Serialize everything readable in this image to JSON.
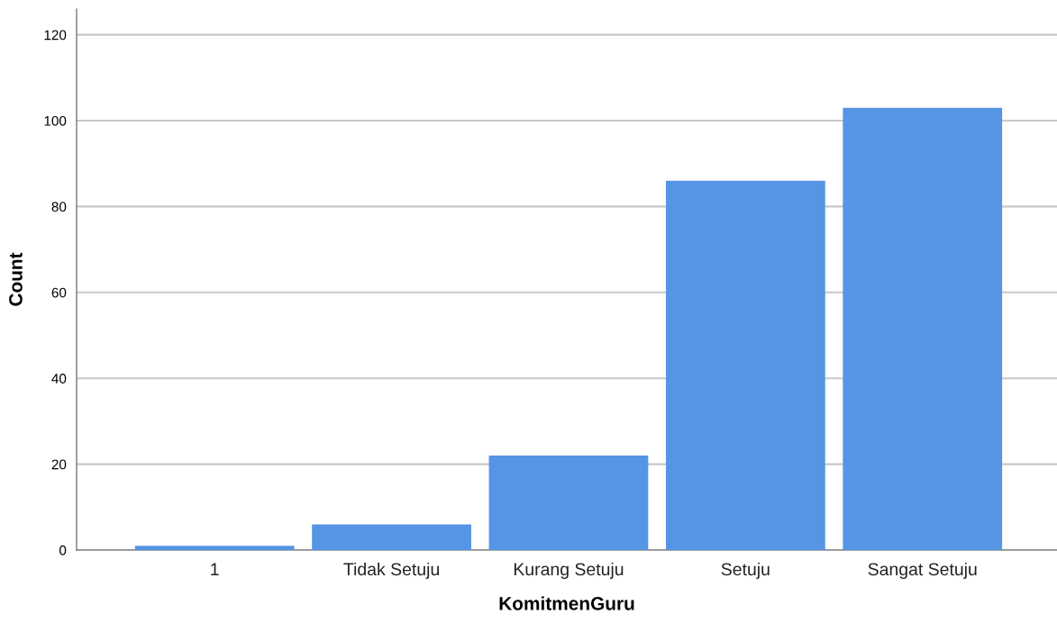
{
  "chart_data": {
    "type": "bar",
    "xlabel": "KomitmenGuru",
    "ylabel": "Count",
    "categories": [
      "1",
      "Tidak Setuju",
      "Kurang Setuju",
      "Setuju",
      "Sangat Setuju"
    ],
    "values": [
      1,
      6,
      22,
      86,
      103
    ],
    "color": "#5595e3",
    "ylim": [
      0,
      126
    ],
    "yticks": [
      0,
      20,
      40,
      60,
      80,
      100,
      120
    ],
    "grid": "y",
    "legend": false
  }
}
